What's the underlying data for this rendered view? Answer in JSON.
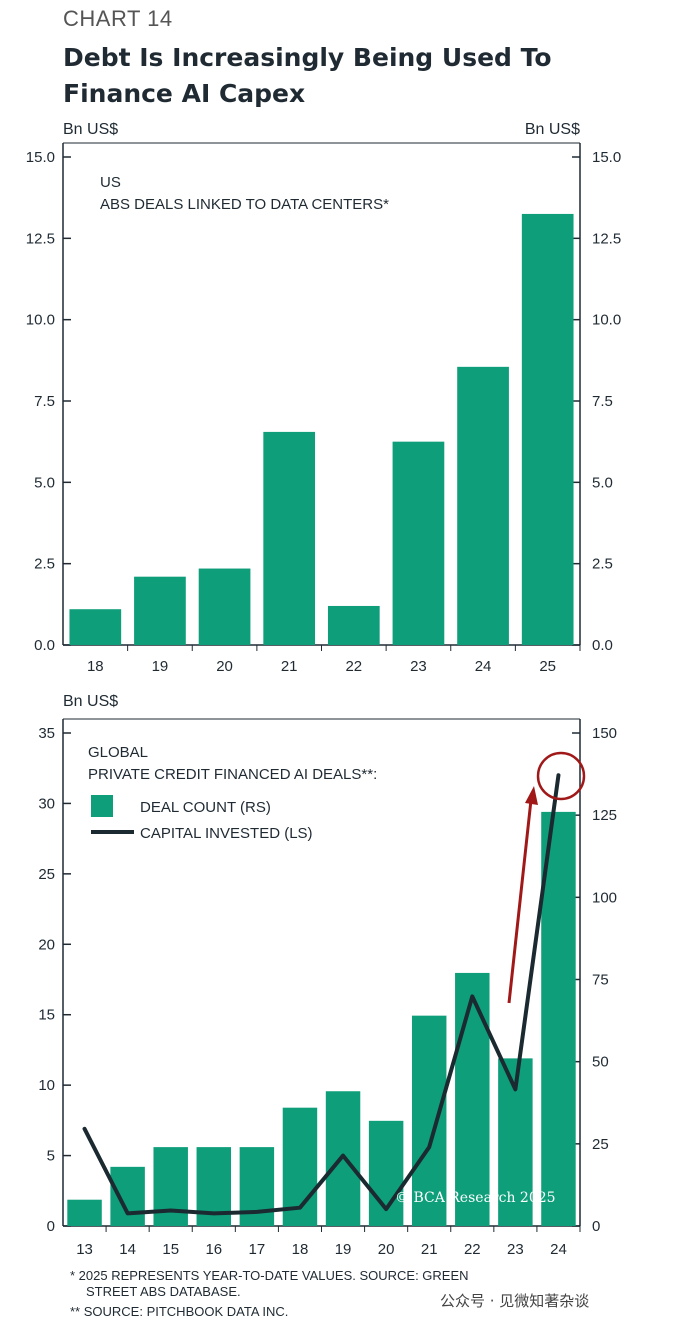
{
  "header": {
    "label": "CHART 14",
    "title": "Debt Is Increasingly Being Used To Finance AI Capex"
  },
  "colors": {
    "bar": "#0e9e7a",
    "line": "#1b2a30",
    "arrow": "#a01818",
    "axis": "#1f2a33"
  },
  "chart_data": [
    {
      "type": "bar",
      "panel": "top",
      "title": "US",
      "subtitle": "ABS DEALS LINKED TO DATA CENTERS*",
      "ylabel_left": "Bn US$",
      "ylabel_right": "Bn US$",
      "categories": [
        "18",
        "19",
        "20",
        "21",
        "22",
        "23",
        "24",
        "25"
      ],
      "values": [
        1.1,
        2.1,
        2.35,
        6.55,
        1.2,
        6.25,
        8.55,
        13.25
      ],
      "ylim": [
        0,
        15
      ],
      "yticks": [
        "0.0",
        "2.5",
        "5.0",
        "7.5",
        "10.0",
        "12.5",
        "15.0"
      ]
    },
    {
      "type": "bar+line",
      "panel": "bottom",
      "title": "GLOBAL",
      "subtitle": "PRIVATE CREDIT FINANCED AI DEALS**:",
      "ylabel_left": "Bn US$",
      "legend": [
        {
          "name": "DEAL COUNT (RS)",
          "kind": "bar"
        },
        {
          "name": "CAPITAL INVESTED (LS)",
          "kind": "line"
        }
      ],
      "categories": [
        "13",
        "14",
        "15",
        "16",
        "17",
        "18",
        "19",
        "20",
        "21",
        "22",
        "23",
        "24"
      ],
      "series": [
        {
          "name": "DEAL COUNT (RS)",
          "axis": "right",
          "values": [
            8,
            18,
            24,
            24,
            24,
            36,
            41,
            32,
            64,
            77,
            51,
            126
          ]
        },
        {
          "name": "CAPITAL INVESTED (LS)",
          "axis": "left",
          "values": [
            6.9,
            0.9,
            1.1,
            0.9,
            1.0,
            1.3,
            5.0,
            1.2,
            5.6,
            16.3,
            9.7,
            32.0
          ]
        }
      ],
      "ylim_left": [
        0,
        35
      ],
      "ylim_right": [
        0,
        150
      ],
      "yticks_left": [
        "0",
        "5",
        "10",
        "15",
        "20",
        "25",
        "30",
        "35"
      ],
      "yticks_right": [
        "0",
        "25",
        "50",
        "75",
        "100",
        "125",
        "150"
      ],
      "copyright": "© BCA Research 2025"
    }
  ],
  "footnotes": {
    "note1": "*  2025 REPRESENTS YEAR-TO-DATE VALUES. SOURCE: GREEN",
    "note1b": "STREET ABS DATABASE.",
    "note2": "** SOURCE: PITCHBOOK DATA INC."
  },
  "watermark": "公众号 · 见微知著杂谈"
}
